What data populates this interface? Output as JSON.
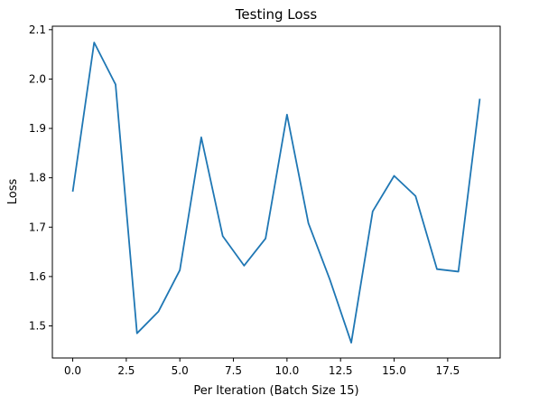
{
  "chart_data": {
    "type": "line",
    "title": "Testing Loss",
    "xlabel": "Per Iteration (Batch Size 15)",
    "ylabel": "Loss",
    "xlim": [
      -0.95,
      19.95
    ],
    "ylim": [
      1.435,
      2.107
    ],
    "x_ticks": [
      0,
      2.5,
      5,
      7.5,
      10,
      12.5,
      15,
      17.5
    ],
    "x_tick_labels": [
      "0.0",
      "2.5",
      "5.0",
      "7.5",
      "10.0",
      "12.5",
      "15.0",
      "17.5"
    ],
    "y_ticks": [
      1.5,
      1.6,
      1.7,
      1.8,
      1.9,
      2.0,
      2.1
    ],
    "y_tick_labels": [
      "1.5",
      "1.6",
      "1.7",
      "1.8",
      "1.9",
      "2.0",
      "2.1"
    ],
    "grid": false,
    "legend": "none",
    "series": [
      {
        "color": "#1f77b4",
        "x": [
          0,
          1,
          2,
          3,
          4,
          5,
          6,
          7,
          8,
          9,
          10,
          11,
          12,
          13,
          14,
          15,
          16,
          17,
          18,
          19
        ],
        "y": [
          1.772,
          2.074,
          1.989,
          1.485,
          1.529,
          1.613,
          1.882,
          1.682,
          1.622,
          1.677,
          1.928,
          1.708,
          1.594,
          1.466,
          1.732,
          1.804,
          1.763,
          1.615,
          1.61,
          1.96
        ]
      }
    ]
  }
}
